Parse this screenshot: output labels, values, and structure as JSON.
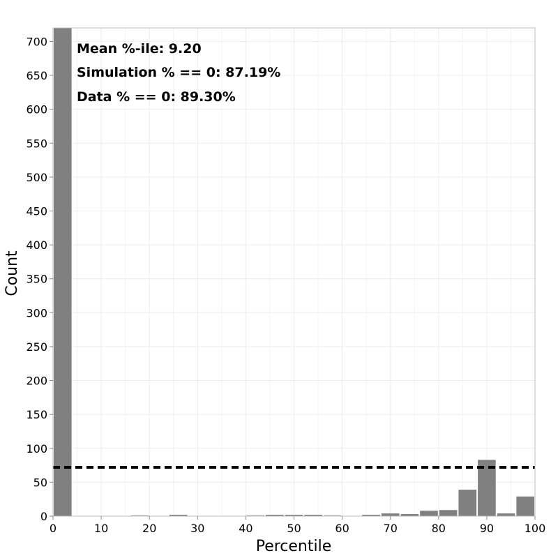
{
  "chart_data": {
    "type": "bar",
    "xlabel": "Percentile",
    "ylabel": "Count",
    "xlim": [
      0,
      100
    ],
    "ylim": [
      0,
      720
    ],
    "x_ticks": [
      0,
      10,
      20,
      30,
      40,
      50,
      60,
      70,
      80,
      90,
      100
    ],
    "y_ticks": [
      0,
      50,
      100,
      150,
      200,
      250,
      300,
      350,
      400,
      450,
      500,
      550,
      600,
      650,
      700
    ],
    "grid": true,
    "bin_width": 4,
    "bars": [
      {
        "x": 2,
        "value": 720
      },
      {
        "x": 6,
        "value": 0
      },
      {
        "x": 10,
        "value": 0
      },
      {
        "x": 14,
        "value": 0
      },
      {
        "x": 18,
        "value": 1
      },
      {
        "x": 22,
        "value": 0
      },
      {
        "x": 26,
        "value": 2
      },
      {
        "x": 30,
        "value": 0
      },
      {
        "x": 34,
        "value": 0
      },
      {
        "x": 38,
        "value": 0
      },
      {
        "x": 42,
        "value": 1
      },
      {
        "x": 46,
        "value": 2
      },
      {
        "x": 50,
        "value": 2
      },
      {
        "x": 54,
        "value": 2
      },
      {
        "x": 58,
        "value": 1
      },
      {
        "x": 62,
        "value": 0
      },
      {
        "x": 66,
        "value": 2
      },
      {
        "x": 70,
        "value": 4
      },
      {
        "x": 74,
        "value": 3
      },
      {
        "x": 78,
        "value": 8
      },
      {
        "x": 82,
        "value": 9
      },
      {
        "x": 86,
        "value": 39
      },
      {
        "x": 90,
        "value": 83
      },
      {
        "x": 94,
        "value": 4
      },
      {
        "x": 98,
        "value": 29
      }
    ],
    "bar_color": "#808080",
    "reference_line": {
      "y": 72,
      "style": "dashed",
      "color": "#000000"
    },
    "annotations": [
      "Mean %-ile: 9.20",
      "Simulation % == 0: 87.19%",
      "Data % == 0: 89.30%"
    ]
  }
}
